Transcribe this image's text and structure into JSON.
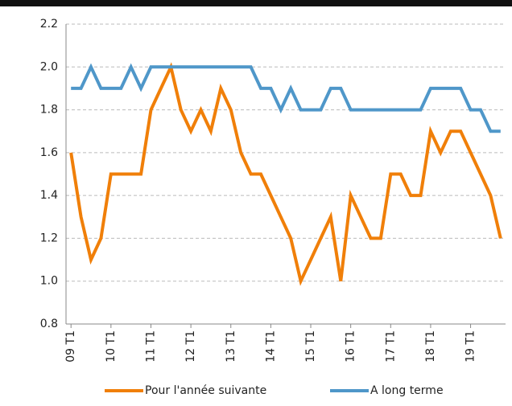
{
  "chart_data": {
    "type": "line",
    "categories": [
      "09 T1",
      null,
      null,
      null,
      "10 T1",
      null,
      null,
      null,
      "11 T1",
      null,
      null,
      null,
      "12 T1",
      null,
      null,
      null,
      "13 T1",
      null,
      null,
      null,
      "14 T1",
      null,
      null,
      null,
      "15 T1",
      null,
      null,
      null,
      "16 T1",
      null,
      null,
      null,
      "17 T1",
      null,
      null,
      null,
      "18 T1",
      null,
      null,
      null,
      "19 T1",
      null,
      null,
      null
    ],
    "series": [
      {
        "name": "Pour l'année suivante",
        "color": "#f07f09",
        "values": [
          1.6,
          1.3,
          1.1,
          1.2,
          1.5,
          1.5,
          1.5,
          1.5,
          1.8,
          1.9,
          2.0,
          1.8,
          1.7,
          1.8,
          1.7,
          1.9,
          1.8,
          1.6,
          1.5,
          1.5,
          1.4,
          1.3,
          1.2,
          1.0,
          1.1,
          1.2,
          1.3,
          1.0,
          1.4,
          1.3,
          1.2,
          1.2,
          1.5,
          1.5,
          1.4,
          1.4,
          1.7,
          1.6,
          1.7,
          1.7,
          1.6,
          1.5,
          1.4,
          1.2
        ]
      },
      {
        "name": "A long terme",
        "color": "#4f97c9",
        "values": [
          1.9,
          1.9,
          2.0,
          1.9,
          1.9,
          1.9,
          2.0,
          1.9,
          2.0,
          2.0,
          2.0,
          2.0,
          2.0,
          2.0,
          2.0,
          2.0,
          2.0,
          2.0,
          2.0,
          1.9,
          1.9,
          1.8,
          1.9,
          1.8,
          1.8,
          1.8,
          1.9,
          1.9,
          1.8,
          1.8,
          1.8,
          1.8,
          1.8,
          1.8,
          1.8,
          1.8,
          1.9,
          1.9,
          1.9,
          1.9,
          1.8,
          1.8,
          1.7,
          1.7
        ]
      }
    ],
    "ylim": [
      0.8,
      2.2
    ],
    "yticks": [
      {
        "value": 0.8,
        "label": "0.8"
      },
      {
        "value": 1.0,
        "label": "1.0"
      },
      {
        "value": 1.2,
        "label": "1.2"
      },
      {
        "value": 1.4,
        "label": "1.4"
      },
      {
        "value": 1.6,
        "label": "1.6"
      },
      {
        "value": 1.8,
        "label": "1.8"
      },
      {
        "value": 2.0,
        "label": "2.0"
      },
      {
        "value": 2.2,
        "label": "2.2"
      }
    ],
    "grid": true,
    "legend": "bottom"
  }
}
